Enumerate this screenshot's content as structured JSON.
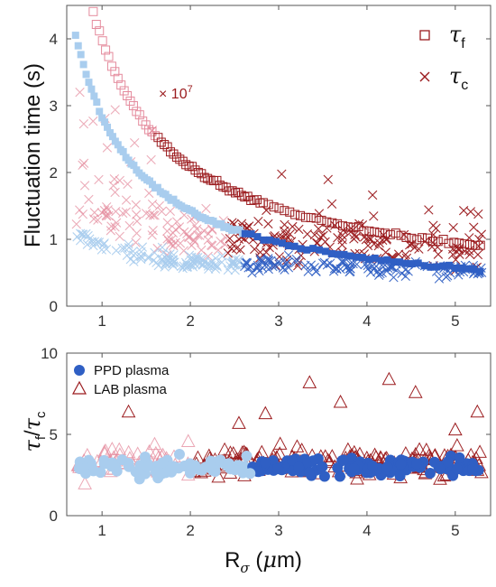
{
  "colors": {
    "dark_red": "#9b1b1e",
    "light_red": "#e48a9c",
    "dark_blue": "#2f5fc4",
    "light_blue": "#a9cdee",
    "axis": "#555555"
  },
  "chart_data": [
    {
      "type": "scatter",
      "panel": "top",
      "ylabel": "Fluctuation time (s)",
      "xlim": [
        0.6,
        5.4
      ],
      "ylim": [
        0,
        4.5
      ],
      "x_ticks": [
        "1",
        "2",
        "3",
        "4",
        "5"
      ],
      "y_ticks": [
        "0",
        "1",
        "2",
        "3",
        "4"
      ],
      "grid": false,
      "legend": {
        "placement": "top-right",
        "entries": [
          {
            "symbol": "τ",
            "subscript": "f",
            "marker": "open-square"
          },
          {
            "symbol": "τ",
            "subscript": "c",
            "marker": "x"
          }
        ]
      },
      "annotation": {
        "base": "× 10",
        "exponent": "7",
        "x": 1.6,
        "y": 3.18
      },
      "series": [
        {
          "name": "τf",
          "marker": "open-square",
          "segments": [
            {
              "shade": "light_red",
              "x_range": [
                0.9,
                1.6
              ]
            },
            {
              "shade": "dark_red",
              "x_range": [
                1.6,
                5.3
              ]
            }
          ],
          "curve": {
            "form": "a/x + b",
            "a": 3.8,
            "b": 0.19
          },
          "points": [
            {
              "x": 1.0,
              "y": 3.99
            },
            {
              "x": 1.5,
              "y": 2.72
            },
            {
              "x": 2.0,
              "y": 2.09
            },
            {
              "x": 2.5,
              "y": 1.71
            },
            {
              "x": 3.0,
              "y": 1.46
            },
            {
              "x": 3.5,
              "y": 1.28
            },
            {
              "x": 4.0,
              "y": 1.14
            },
            {
              "x": 4.5,
              "y": 1.03
            },
            {
              "x": 5.0,
              "y": 0.95
            },
            {
              "x": 5.3,
              "y": 0.91
            }
          ]
        },
        {
          "name": "τf (PPD plasma)",
          "marker": "filled-square",
          "segments": [
            {
              "shade": "light_blue",
              "x_range": [
                0.7,
                2.6
              ]
            },
            {
              "shade": "dark_blue",
              "x_range": [
                2.6,
                5.3
              ]
            }
          ],
          "curve": {
            "form": "a/x + b",
            "a": 2.85,
            "b": 0.0
          },
          "points": [
            {
              "x": 0.7,
              "y": 4.3
            },
            {
              "x": 0.8,
              "y": 3.5
            },
            {
              "x": 1.0,
              "y": 2.85
            },
            {
              "x": 1.5,
              "y": 1.9
            },
            {
              "x": 2.0,
              "y": 1.43
            },
            {
              "x": 2.5,
              "y": 1.14
            },
            {
              "x": 3.0,
              "y": 0.95
            },
            {
              "x": 3.5,
              "y": 0.81
            },
            {
              "x": 4.0,
              "y": 0.71
            },
            {
              "x": 4.5,
              "y": 0.63
            },
            {
              "x": 5.0,
              "y": 0.57
            },
            {
              "x": 5.3,
              "y": 0.54
            }
          ]
        },
        {
          "name": "τc (PPD plasma)",
          "marker": "x",
          "shades": [
            "light_blue",
            "dark_blue"
          ],
          "x_range": [
            0.7,
            5.3
          ],
          "y_band": [
            0.1,
            1.4
          ],
          "cluster_center": 0.45
        },
        {
          "name": "τc (LAB plasma)",
          "marker": "x",
          "shades": [
            "light_red",
            "dark_red"
          ],
          "x_range": [
            0.7,
            5.3
          ],
          "y_band": [
            0.1,
            3.2
          ],
          "cluster_center": 0.8
        }
      ]
    },
    {
      "type": "scatter",
      "panel": "bottom",
      "xlabel": "Rσ (μm)",
      "ylabel": "τf/τc",
      "xlim": [
        0.6,
        5.4
      ],
      "ylim": [
        0,
        10
      ],
      "x_ticks": [
        "1",
        "2",
        "3",
        "4",
        "5"
      ],
      "y_ticks": [
        "0",
        "5",
        "10"
      ],
      "grid": false,
      "legend": {
        "placement": "top-left",
        "entries": [
          {
            "label": "PPD plasma",
            "marker": "filled-circle"
          },
          {
            "label": "LAB plasma",
            "marker": "open-triangle"
          }
        ]
      },
      "series": [
        {
          "name": "PPD plasma",
          "marker": "filled-circle",
          "shades": [
            "light_blue",
            "dark_blue"
          ],
          "x_range": [
            0.7,
            5.3
          ],
          "y_band": [
            1.8,
            4.5
          ],
          "center": 3.0
        },
        {
          "name": "LAB plasma",
          "marker": "open-triangle",
          "shades": [
            "light_red",
            "dark_red"
          ],
          "x_range": [
            0.7,
            5.3
          ],
          "y_band": [
            1.0,
            8.5
          ],
          "center": 3.3,
          "high_points": [
            {
              "x": 3.35,
              "y": 8.2
            },
            {
              "x": 4.25,
              "y": 8.4
            },
            {
              "x": 4.55,
              "y": 7.6
            },
            {
              "x": 3.7,
              "y": 7.0
            },
            {
              "x": 5.25,
              "y": 6.4
            },
            {
              "x": 1.3,
              "y": 6.4
            },
            {
              "x": 2.85,
              "y": 6.3
            },
            {
              "x": 5.0,
              "y": 5.3
            },
            {
              "x": 2.55,
              "y": 5.7
            }
          ]
        }
      ]
    }
  ]
}
